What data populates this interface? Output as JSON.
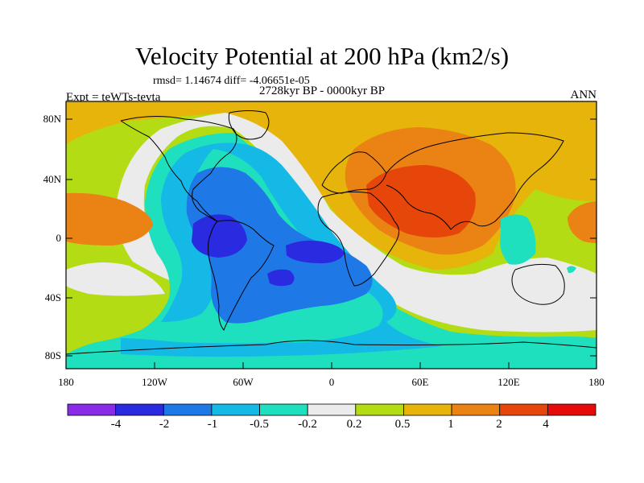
{
  "figure": {
    "title": "Velocity Potential at 200 hPa (km2/s)",
    "stats": "rmsd= 1.14674  diff= -4.06651e-05",
    "period": "2728kyr BP - 0000kyr BP",
    "experiment": "Expt = teWTs-tevta",
    "season": "ANN"
  },
  "axes": {
    "lat_ticks": [
      "80N",
      "40N",
      "0",
      "40S",
      "80S"
    ],
    "lon_ticks": [
      "180",
      "120W",
      "60W",
      "0",
      "60E",
      "120E",
      "180"
    ]
  },
  "colorbar": {
    "labels": [
      "-4",
      "-2",
      "-1",
      "-0.5",
      "-0.2",
      "0.2",
      "0.5",
      "1",
      "2",
      "4"
    ],
    "colors": [
      "#8a2be8",
      "#2a2ae0",
      "#1e78e6",
      "#14b9e6",
      "#1ee0be",
      "#ebebeb",
      "#b4dc14",
      "#e6b40a",
      "#eb8214",
      "#e6460a",
      "#e60a0a"
    ]
  },
  "palette": {
    "land_outline": "#000000",
    "frame": "#000000"
  }
}
